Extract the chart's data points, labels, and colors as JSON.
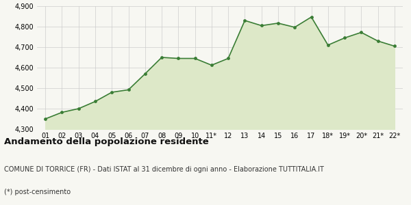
{
  "x_labels": [
    "01",
    "02",
    "03",
    "04",
    "05",
    "06",
    "07",
    "08",
    "09",
    "10",
    "11*",
    "12",
    "13",
    "14",
    "15",
    "16",
    "17",
    "18*",
    "19*",
    "20*",
    "21*",
    "22*"
  ],
  "y_values": [
    4350,
    4382,
    4400,
    4435,
    4480,
    4492,
    4570,
    4650,
    4645,
    4645,
    4612,
    4645,
    4830,
    4805,
    4817,
    4797,
    4847,
    4710,
    4745,
    4772,
    4730,
    4705
  ],
  "y_min": 4300,
  "y_max": 4900,
  "y_ticks": [
    4300,
    4400,
    4500,
    4600,
    4700,
    4800,
    4900
  ],
  "line_color": "#3a7d35",
  "fill_color": "#dde8c8",
  "marker_color": "#3a7d35",
  "bg_color": "#f7f7f2",
  "grid_color": "#cccccc",
  "title": "Andamento della popolazione residente",
  "subtitle": "COMUNE DI TORRICE (FR) - Dati ISTAT al 31 dicembre di ogni anno - Elaborazione TUTTITALIA.IT",
  "footnote": "(*) post-censimento",
  "title_fontsize": 9.5,
  "subtitle_fontsize": 7,
  "footnote_fontsize": 7,
  "tick_fontsize": 7
}
